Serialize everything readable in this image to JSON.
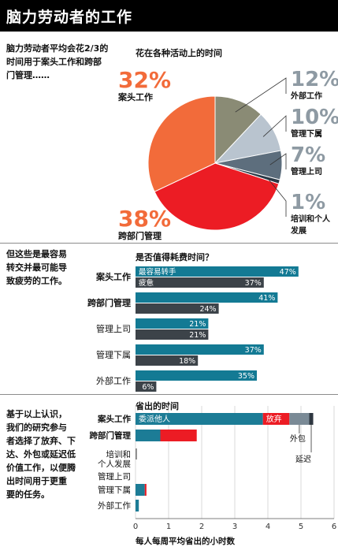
{
  "page_title": "脑力劳动者的工作",
  "intro_text": [
    "脑力劳动者平均会花2/3的",
    "时间用于案头工作和跨部",
    "门管理……"
  ],
  "middle_text": [
    "但这些是最容易",
    "转交并最可能导",
    "致疲劳的工作。"
  ],
  "bottom_text": [
    "基于以上认识，",
    "我们的研究参与",
    "者选择了放弃、下",
    "达、外包或延迟低",
    "价值工作，以便腾",
    "出时间用于更重",
    "要的任务。"
  ],
  "colors": {
    "desk": "#f26b3a",
    "cross": "#ec1c24",
    "external": "#8a8b75",
    "subordinate": "#b9c4cf",
    "boss": "#5d6e7d",
    "training": "#2b3a47",
    "teal": "#137a94",
    "dark": "#3c4349",
    "drop": "#1c7c96",
    "delegate": "#ec1c24",
    "outsource": "#7a8a96",
    "delay": "#2e3740",
    "big_pct": "#f26b3a",
    "grey_pct": "#8e9aa3"
  },
  "chart_data": [
    {
      "type": "pie",
      "title": "花在各种活动上的时间",
      "slices": [
        {
          "label": "外部工作",
          "value": 12,
          "display": "12%",
          "color": "#8a8b75"
        },
        {
          "label": "管理下属",
          "value": 10,
          "display": "10%",
          "color": "#b9c4cf"
        },
        {
          "label": "管理上司",
          "value": 7,
          "display": "7%",
          "color": "#5d6e7d"
        },
        {
          "label": "培训和个人发展",
          "value": 1,
          "display": "1%",
          "color": "#2b3a47"
        },
        {
          "label": "跨部门管理",
          "value": 38,
          "display": "38%",
          "color": "#ec1c24"
        },
        {
          "label": "案头工作",
          "value": 32,
          "display": "32%",
          "color": "#f26b3a"
        }
      ]
    },
    {
      "type": "bar",
      "title": "是否值得耗费时间？",
      "categories": [
        "案头工作",
        "跨部门管理",
        "管理上司",
        "管理下属",
        "外部工作"
      ],
      "series": [
        {
          "name": "最容易转手",
          "values": [
            47,
            41,
            21,
            37,
            35
          ],
          "color": "#137a94"
        },
        {
          "name": "疲惫",
          "values": [
            37,
            24,
            21,
            18,
            6
          ],
          "color": "#3c4349"
        }
      ],
      "value_labels": {
        "最容易转手": [
          "47%",
          "41%",
          "21%",
          "37%",
          "35%"
        ],
        "疲惫": [
          "37%",
          "24%",
          "21%",
          "18%",
          "6%"
        ]
      },
      "xlim": [
        0,
        50
      ]
    },
    {
      "type": "bar",
      "stacked": true,
      "title": "省出的时间",
      "xlabel": "每人每周平均省出的小时数",
      "categories": [
        "案头工作",
        "跨部门管理",
        "培训和个人发展",
        "管理上司",
        "管理下属",
        "外部工作"
      ],
      "series": [
        {
          "name": "放弃",
          "values": [
            3.85,
            0.75,
            0.0,
            0.0,
            0.28,
            0.1
          ],
          "color": "#1c7c96"
        },
        {
          "name": "委派他人",
          "values": [
            0.8,
            1.1,
            0.0,
            0.0,
            0.05,
            0.0
          ],
          "color": "#ec1c24"
        },
        {
          "name": "外包",
          "values": [
            0.6,
            0.0,
            0.0,
            0.0,
            0.0,
            0.0
          ],
          "color": "#7a8a96"
        },
        {
          "name": "延迟",
          "values": [
            0.12,
            0.0,
            0.0,
            0.0,
            0.0,
            0.0
          ],
          "color": "#2e3740"
        }
      ],
      "inline_labels": {
        "bar_left": "委派他人",
        "bar_middle": "放弃",
        "callout_1": "外包",
        "callout_2": "延迟"
      },
      "xlim": [
        0,
        6
      ],
      "xticks": [
        "0",
        "1",
        "2",
        "3",
        "4",
        "5",
        "6"
      ],
      "grid": true
    }
  ]
}
